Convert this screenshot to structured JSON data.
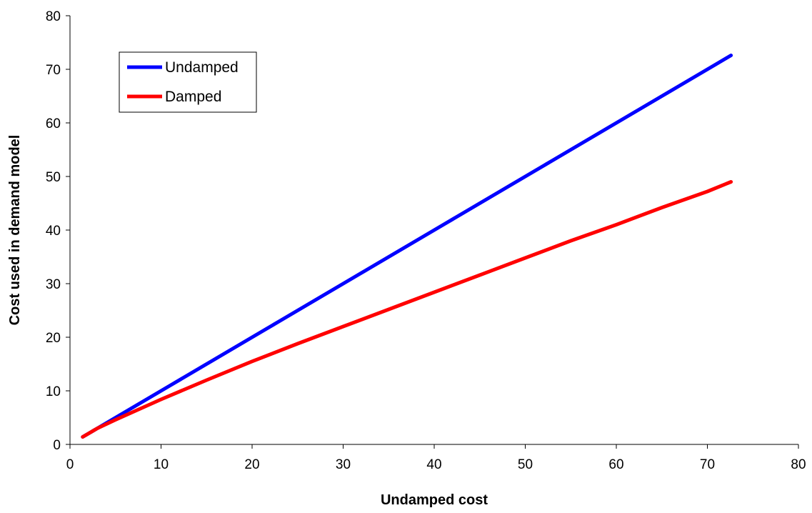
{
  "chart_data": {
    "type": "line",
    "title": "",
    "xlabel": "Undamped cost",
    "ylabel": "Cost used in demand model",
    "xlim": [
      0,
      80
    ],
    "ylim": [
      0,
      80
    ],
    "x_ticks": [
      0,
      10,
      20,
      30,
      40,
      50,
      60,
      70,
      80
    ],
    "y_ticks": [
      0,
      10,
      20,
      30,
      40,
      50,
      60,
      70,
      80
    ],
    "grid": false,
    "legend_position": "top-left",
    "series": [
      {
        "name": "Undamped",
        "color": "#0000ff",
        "x": [
          1.4,
          3,
          5,
          7,
          9,
          11,
          13,
          15,
          17,
          19,
          21,
          23,
          25,
          27,
          29,
          31,
          33,
          35,
          37,
          39,
          41,
          43,
          45,
          47,
          49,
          51,
          53,
          55,
          57,
          59,
          61,
          63,
          65,
          67,
          69,
          71,
          72.6
        ],
        "values": [
          1.4,
          3,
          5,
          7,
          9,
          11,
          13,
          15,
          17,
          19,
          21,
          23,
          25,
          27,
          29,
          31,
          33,
          35,
          37,
          39,
          41,
          43,
          45,
          47,
          49,
          51,
          53,
          55,
          57,
          59,
          61,
          63,
          65,
          67,
          69,
          71,
          72.6
        ]
      },
      {
        "name": "Damped",
        "color": "#ff0000",
        "x": [
          1.4,
          3,
          5,
          10,
          15,
          20,
          25,
          30,
          35,
          40,
          45,
          50,
          55,
          60,
          65,
          70,
          72.6
        ],
        "values": [
          1.4,
          3.0,
          4.6,
          8.4,
          12.0,
          15.5,
          18.8,
          22.0,
          25.2,
          28.4,
          31.6,
          34.8,
          38.0,
          41.0,
          44.2,
          47.2,
          49.0
        ]
      }
    ]
  }
}
